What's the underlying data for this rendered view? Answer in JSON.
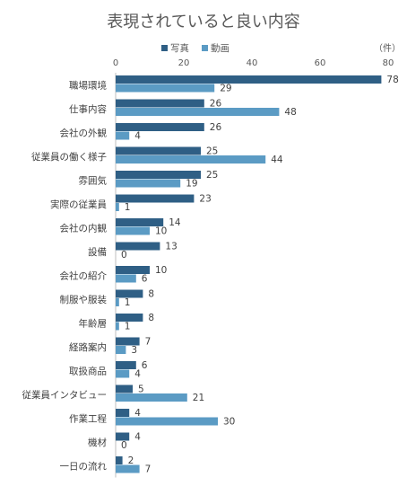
{
  "chart_data": {
    "type": "bar",
    "orientation": "horizontal",
    "title": "表現されていると良い内容",
    "unit_label": "（件）",
    "xlim": [
      0,
      80
    ],
    "ticks": [
      0,
      20,
      40,
      60,
      80
    ],
    "grid": false,
    "legend_position": "top",
    "categories": [
      "職場環境",
      "仕事内容",
      "会社の外観",
      "従業員の働く様子",
      "雰囲気",
      "実際の従業員",
      "会社の内観",
      "設備",
      "会社の紹介",
      "制服や服装",
      "年齢層",
      "経路案内",
      "取扱商品",
      "従業員インタビュー",
      "作業工程",
      "機材",
      "一日の流れ"
    ],
    "series": [
      {
        "name": "写真",
        "color": "#2f5f85",
        "values": [
          78,
          26,
          26,
          25,
          25,
          23,
          14,
          13,
          10,
          8,
          8,
          7,
          6,
          5,
          4,
          4,
          2
        ]
      },
      {
        "name": "動画",
        "color": "#5b9bc4",
        "values": [
          29,
          48,
          4,
          44,
          19,
          1,
          10,
          0,
          6,
          1,
          1,
          3,
          4,
          21,
          30,
          0,
          7
        ]
      }
    ]
  }
}
